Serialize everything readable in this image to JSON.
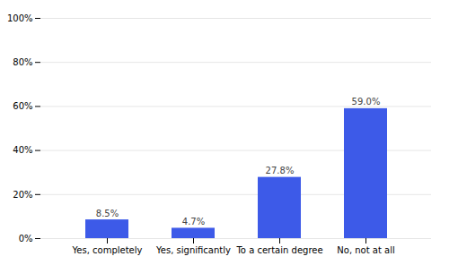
{
  "chart_data": {
    "type": "bar",
    "categories": [
      "Yes, completely",
      "Yes, significantly",
      "To a certain degree",
      "No, not at all"
    ],
    "values": [
      8.5,
      4.7,
      27.8,
      59.0
    ],
    "value_labels": [
      "8.5%",
      "4.7%",
      "27.8%",
      "59.0%"
    ],
    "data_labels": true,
    "color": "#3d5ae8",
    "ylim": [
      0,
      100
    ],
    "yticks": [
      {
        "value": 0,
        "label": "0%"
      },
      {
        "value": 20,
        "label": "20%"
      },
      {
        "value": 40,
        "label": "40%"
      },
      {
        "value": 60,
        "label": "60%"
      },
      {
        "value": 80,
        "label": "80%"
      },
      {
        "value": 100,
        "label": "100%"
      }
    ],
    "grid": true
  }
}
